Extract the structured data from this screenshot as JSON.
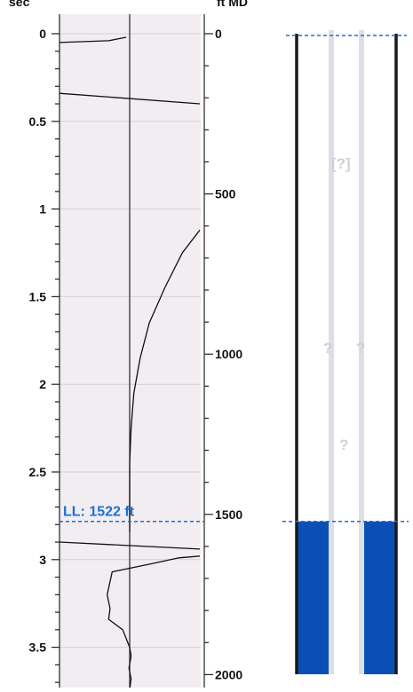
{
  "chart_data": {
    "type": "line",
    "left_axis": {
      "unit_label": "sec",
      "ticks": [
        "0",
        "0.5",
        "1",
        "1.5",
        "2",
        "2.5",
        "3",
        "3.5"
      ],
      "tick_values": [
        0,
        0.5,
        1,
        1.5,
        2,
        2.5,
        3,
        3.5
      ],
      "ylim": [
        0,
        3.7
      ],
      "inverted": true
    },
    "right_axis": {
      "unit_label": "ft MD",
      "ticks": [
        "0",
        "500",
        "1000",
        "1500",
        "2000"
      ],
      "tick_values": [
        0,
        500,
        1000,
        1500,
        2000
      ],
      "ylim": [
        0,
        2000
      ]
    },
    "xlim": [
      -1,
      1
    ],
    "grid": true,
    "series": [
      {
        "x": [
          -1,
          -0.3,
          -0.05
        ],
        "y": [
          0.05,
          0.04,
          0.02
        ]
      },
      {
        "x": [
          -1,
          1
        ],
        "y": [
          0.34,
          0.4
        ]
      },
      {
        "x": [
          1,
          0.75,
          0.5,
          0.28,
          0.15,
          0.06,
          0.02,
          0,
          0,
          0,
          0
        ],
        "y": [
          1.12,
          1.25,
          1.45,
          1.65,
          1.85,
          2.05,
          2.25,
          2.45,
          2.65,
          2.8,
          2.84
        ]
      },
      {
        "x": [
          -1,
          1
        ],
        "y": [
          2.9,
          2.94
        ]
      },
      {
        "x": [
          1,
          0.7,
          0.35,
          -0.25,
          -0.32,
          -0.28,
          -0.3,
          -0.1,
          0,
          0.02,
          -0.01,
          0.02,
          0
        ],
        "y": [
          2.98,
          2.99,
          3.02,
          3.07,
          3.2,
          3.28,
          3.34,
          3.4,
          3.5,
          3.55,
          3.62,
          3.68,
          3.74
        ]
      }
    ],
    "liquid_level": {
      "label": "LL: 1522 ft",
      "depth_ft": 1522
    }
  },
  "wellbore": {
    "top_depth_ft": 0,
    "fluid_top_depth_ft": 1522,
    "unknown_markers": [
      "[?]",
      "?",
      "?",
      "?"
    ],
    "colors": {
      "fluid": "#0a4fb5",
      "tubing": "#dedee6",
      "casing": "#1a1a1a",
      "marker_line": "#1f6fd0",
      "panel_bg": "#f1edf1"
    }
  }
}
